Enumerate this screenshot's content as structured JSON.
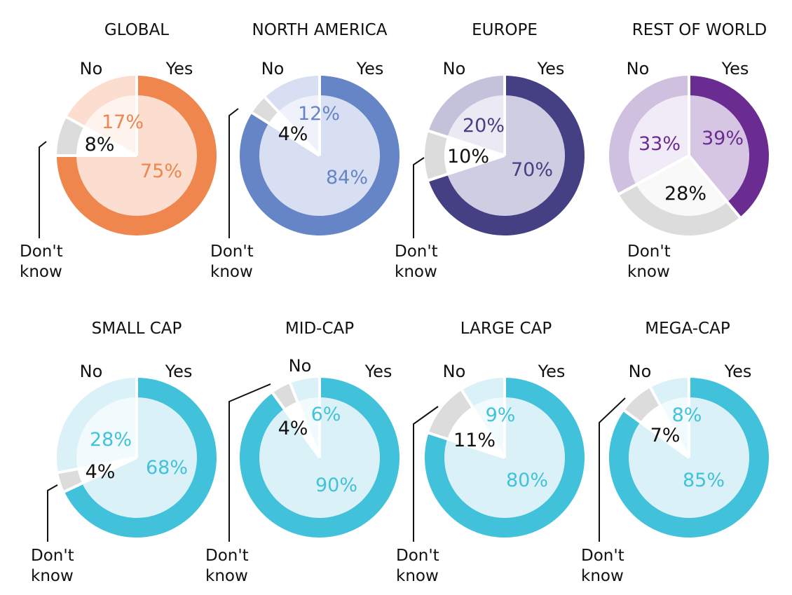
{
  "labels": {
    "yes": "Yes",
    "no": "No",
    "dont_know_line1": "Don't",
    "dont_know_line2": "know"
  },
  "chart_data": [
    {
      "type": "pie",
      "title": "GLOBAL",
      "categories": [
        "Yes",
        "No",
        "Don't know"
      ],
      "values": [
        75,
        17,
        8
      ],
      "value_labels": [
        "75%",
        "17%",
        "8%"
      ],
      "colors": {
        "yes_ring": "#ee864e",
        "yes_inner": "#fbdecf",
        "no_ring": "#fbdecf",
        "no_inner": "#fef3ed",
        "dk_ring": "#dcdcdc",
        "dk_inner": "#ffffff",
        "yes_text": "#ee864e",
        "no_text": "#ee864e",
        "dk_text": "#111111"
      }
    },
    {
      "type": "pie",
      "title": "NORTH AMERICA",
      "categories": [
        "Yes",
        "No",
        "Don't know"
      ],
      "values": [
        84,
        12,
        4
      ],
      "value_labels": [
        "84%",
        "12%",
        "4%"
      ],
      "colors": {
        "yes_ring": "#6585c6",
        "yes_inner": "#d9dff2",
        "no_ring": "#d9dff2",
        "no_inner": "#eff2fa",
        "dk_ring": "#dcdcdc",
        "dk_inner": "#ffffff",
        "yes_text": "#6585c6",
        "no_text": "#6585c6",
        "dk_text": "#111111"
      }
    },
    {
      "type": "pie",
      "title": "EUROPE",
      "categories": [
        "Yes",
        "No",
        "Don't know"
      ],
      "values": [
        70,
        20,
        10
      ],
      "value_labels": [
        "70%",
        "20%",
        "10%"
      ],
      "colors": {
        "yes_ring": "#453f83",
        "yes_inner": "#cfcde2",
        "no_ring": "#c4c1db",
        "no_inner": "#ebe9f3",
        "dk_ring": "#dcdcdc",
        "dk_inner": "#ffffff",
        "yes_text": "#453f83",
        "no_text": "#453f83",
        "dk_text": "#111111"
      }
    },
    {
      "type": "pie",
      "title": "REST OF WORLD",
      "categories": [
        "Yes",
        "No",
        "Don't know"
      ],
      "values": [
        39,
        33,
        28
      ],
      "value_labels": [
        "39%",
        "33%",
        "28%"
      ],
      "colors": {
        "yes_ring": "#6b2c91",
        "yes_inner": "#d6c6e4",
        "no_ring": "#d0c0df",
        "no_inner": "#f0ebf6",
        "dk_ring": "#dcdcdc",
        "dk_inner": "#f9f9f9",
        "yes_text": "#6b2c91",
        "no_text": "#6b2c91",
        "dk_text": "#111111"
      }
    },
    {
      "type": "pie",
      "title": "SMALL CAP",
      "categories": [
        "Yes",
        "No",
        "Don't know"
      ],
      "values": [
        68,
        28,
        4
      ],
      "value_labels": [
        "68%",
        "28%",
        "4%"
      ],
      "colors": {
        "yes_ring": "#42c2da",
        "yes_inner": "#dbf1f8",
        "no_ring": "#dbf1f8",
        "no_inner": "#f1fafd",
        "dk_ring": "#dcdcdc",
        "dk_inner": "#ffffff",
        "yes_text": "#42c2da",
        "no_text": "#42c2da",
        "dk_text": "#111111"
      }
    },
    {
      "type": "pie",
      "title": "MID-CAP",
      "categories": [
        "Yes",
        "No",
        "Don't know"
      ],
      "values": [
        90,
        6,
        4
      ],
      "value_labels": [
        "90%",
        "6%",
        "4%"
      ],
      "colors": {
        "yes_ring": "#42c2da",
        "yes_inner": "#dbf1f8",
        "no_ring": "#dbf1f8",
        "no_inner": "#f1fafd",
        "dk_ring": "#dcdcdc",
        "dk_inner": "#ffffff",
        "yes_text": "#42c2da",
        "no_text": "#42c2da",
        "dk_text": "#111111"
      }
    },
    {
      "type": "pie",
      "title": "LARGE CAP",
      "categories": [
        "Yes",
        "No",
        "Don't know"
      ],
      "values": [
        80,
        9,
        11
      ],
      "value_labels": [
        "80%",
        "9%",
        "11%"
      ],
      "colors": {
        "yes_ring": "#42c2da",
        "yes_inner": "#dbf1f8",
        "no_ring": "#dbf1f8",
        "no_inner": "#f1fafd",
        "dk_ring": "#dcdcdc",
        "dk_inner": "#ffffff",
        "yes_text": "#42c2da",
        "no_text": "#42c2da",
        "dk_text": "#111111"
      }
    },
    {
      "type": "pie",
      "title": "MEGA-CAP",
      "categories": [
        "Yes",
        "No",
        "Don't know"
      ],
      "values": [
        85,
        8,
        7
      ],
      "value_labels": [
        "85%",
        "8%",
        "7%"
      ],
      "colors": {
        "yes_ring": "#42c2da",
        "yes_inner": "#dbf1f8",
        "no_ring": "#dbf1f8",
        "no_inner": "#f1fafd",
        "dk_ring": "#dcdcdc",
        "dk_inner": "#ffffff",
        "yes_text": "#42c2da",
        "no_text": "#42c2da",
        "dk_text": "#111111"
      }
    }
  ]
}
